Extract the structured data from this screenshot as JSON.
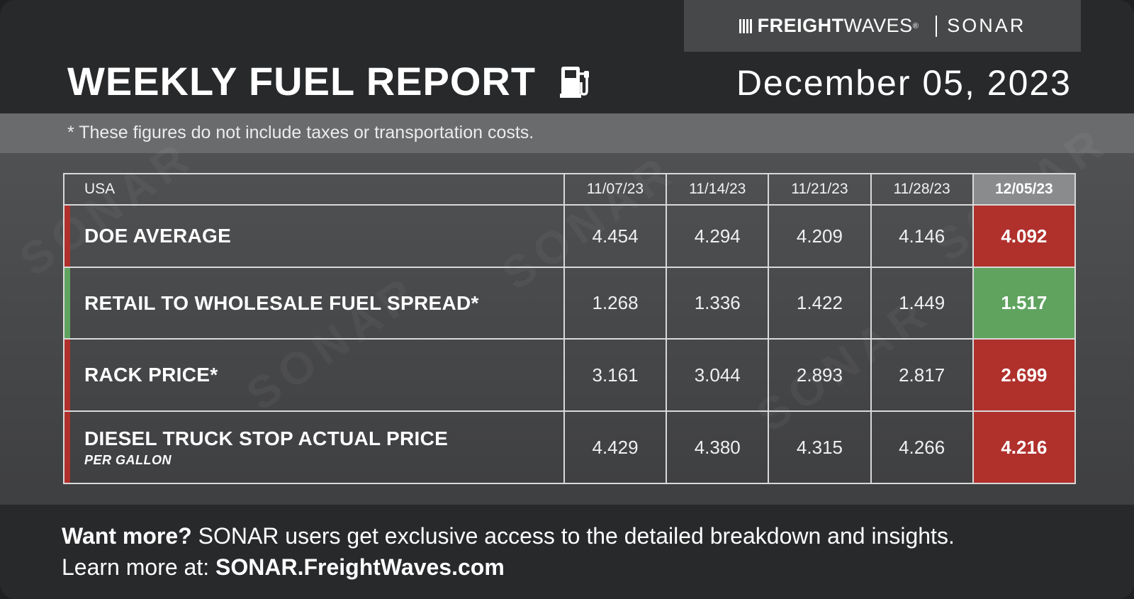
{
  "header": {
    "brand": {
      "freight": "FREIGHT",
      "waves": "WAVES",
      "registered": "®",
      "sonar": "SONAR"
    },
    "title": "WEEKLY FUEL REPORT",
    "date": "December 05, 2023",
    "icon": "fuel-pump-icon"
  },
  "note": "* These figures do not include taxes or transportation costs.",
  "table": {
    "region_label": "USA",
    "columns": [
      "11/07/23",
      "11/14/23",
      "11/21/23",
      "11/28/23",
      "12/05/23"
    ],
    "rows": [
      {
        "label": "DOE AVERAGE",
        "sublabel": "",
        "values": [
          "4.454",
          "4.294",
          "4.209",
          "4.146"
        ],
        "latest": "4.092",
        "status_color": "#b0302c"
      },
      {
        "label": "RETAIL TO WHOLESALE FUEL SPREAD*",
        "sublabel": "",
        "values": [
          "1.268",
          "1.336",
          "1.422",
          "1.449"
        ],
        "latest": "1.517",
        "status_color": "#5fa35f"
      },
      {
        "label": "RACK PRICE*",
        "sublabel": "",
        "values": [
          "3.161",
          "3.044",
          "2.893",
          "2.817"
        ],
        "latest": "2.699",
        "status_color": "#b0302c"
      },
      {
        "label": "DIESEL TRUCK STOP ACTUAL PRICE",
        "sublabel": "PER GALLON",
        "values": [
          "4.429",
          "4.380",
          "4.315",
          "4.266"
        ],
        "latest": "4.216",
        "status_color": "#b0302c"
      }
    ]
  },
  "footer": {
    "line1_bold": "Want more?",
    "line1_rest": "SONAR users get exclusive access to the detailed breakdown and insights.",
    "line2_prefix": "Learn more at:",
    "line2_link": "SONAR.FreightWaves.com"
  },
  "colors": {
    "background": "#2a2b2d",
    "up": "#5fa35f",
    "down": "#b0302c",
    "latest_header": "#8a8b8d"
  }
}
